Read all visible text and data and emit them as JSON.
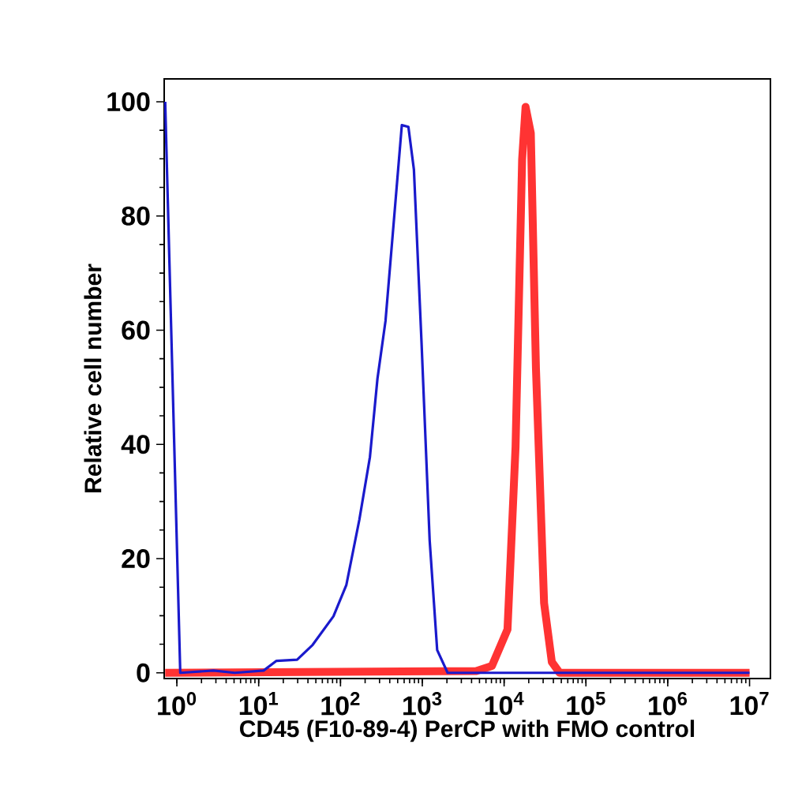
{
  "chart_data": {
    "type": "line",
    "xlabel": "CD45 (F10-89-4) PerCP with FMO control",
    "ylabel": "Relative cell number",
    "log": "x",
    "xlim": [
      0.7,
      18000000
    ],
    "ylim": [
      -1,
      104
    ],
    "xticks": [
      {
        "value": 1,
        "label": "10$^{0}$"
      },
      {
        "value": 10,
        "label": "10$^{1}$"
      },
      {
        "value": 100,
        "label": "10$^{2}$"
      },
      {
        "value": 1000,
        "label": "10$^{3}$"
      },
      {
        "value": 10000,
        "label": "10$^{4}$"
      },
      {
        "value": 100000,
        "label": "10$^{5}$"
      },
      {
        "value": 1000000,
        "label": "10$^{6}$"
      },
      {
        "value": 10000000,
        "label": "10$^{7}$"
      }
    ],
    "yticks": [
      0,
      20,
      40,
      60,
      80,
      100
    ],
    "series": [
      {
        "color": "#1a1acc",
        "x": [
          0.72,
          1.1,
          2.8,
          5.1,
          11.5,
          16.5,
          29.5,
          45.7,
          82,
          118,
          170,
          229,
          283,
          355,
          437,
          562,
          676,
          790,
          978,
          1230,
          1520,
          2040,
          10000000
        ],
        "values": [
          100,
          0,
          0.4,
          0,
          0.4,
          2.1,
          2.3,
          4.9,
          9.9,
          15.4,
          26.8,
          37.8,
          51.5,
          61.6,
          77.1,
          95.9,
          95.6,
          88.1,
          57.9,
          23.2,
          4.0,
          0,
          0
        ]
      },
      {
        "color": "#ff3333",
        "x": [
          0.72,
          4570,
          7100,
          11000,
          13800,
          16600,
          18300,
          21200,
          24500,
          30800,
          38300,
          47700,
          10000000
        ],
        "values": [
          0,
          0.3,
          1.2,
          7.6,
          39.6,
          89.9,
          99.1,
          94.5,
          53.3,
          12.2,
          1.9,
          0,
          0
        ]
      }
    ]
  }
}
